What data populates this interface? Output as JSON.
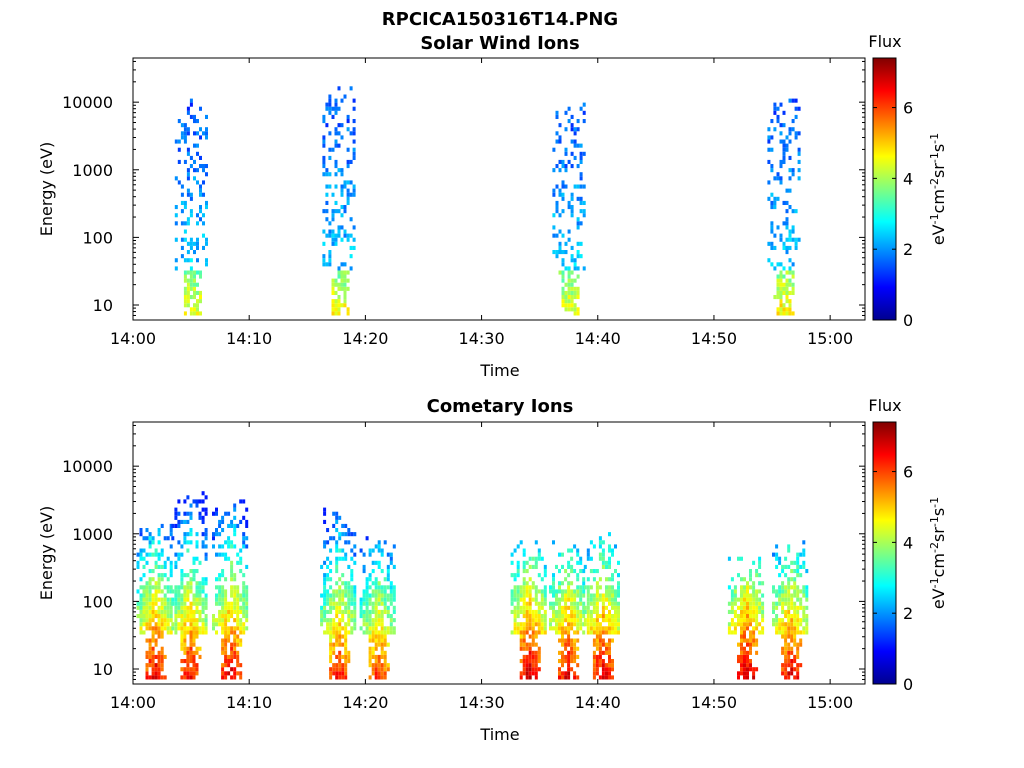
{
  "figure_title": "RPCICA150316T14.PNG",
  "colorbar_label": "Flux",
  "colorbar_units": {
    "base": "eV",
    "parts": [
      {
        "t": "eV",
        "s": "-1"
      },
      {
        "t": "cm",
        "s": "-2"
      },
      {
        "t": "sr",
        "s": "-1"
      },
      {
        "t": "s",
        "s": "-1"
      }
    ]
  },
  "colorbar_ticks": [
    "0",
    "2",
    "4",
    "6"
  ],
  "colorbar_range": [
    0,
    7.4
  ],
  "colormap": "jet",
  "chart_data": [
    {
      "type": "heatmap",
      "title": "Solar Wind Ions",
      "xlabel": "Time",
      "ylabel": "Energy (eV)",
      "xticks": [
        "14:00",
        "14:10",
        "14:20",
        "14:30",
        "14:40",
        "14:50",
        "15:00"
      ],
      "xlim_minutes": [
        0,
        63
      ],
      "yticks": [
        "10",
        "100",
        "1000",
        "10000"
      ],
      "ylim": [
        6,
        45000
      ],
      "yscale": "log",
      "bursts": [
        {
          "center_min": 5.0,
          "low_flux": 4.6,
          "high_energy": 8000
        },
        {
          "center_min": 17.7,
          "low_flux": 4.7,
          "high_energy": 12000
        },
        {
          "center_min": 37.5,
          "low_flux": 4.6,
          "high_energy": 9000
        },
        {
          "center_min": 56.0,
          "low_flux": 4.8,
          "high_energy": 9000
        }
      ]
    },
    {
      "type": "heatmap",
      "title": "Cometary Ions",
      "xlabel": "Time",
      "ylabel": "Energy (eV)",
      "xticks": [
        "14:00",
        "14:10",
        "14:20",
        "14:30",
        "14:40",
        "14:50",
        "15:00"
      ],
      "xlim_minutes": [
        0,
        63
      ],
      "yticks": [
        "10",
        "100",
        "1000",
        "10000"
      ],
      "ylim": [
        6,
        45000
      ],
      "yscale": "log",
      "bursts": [
        {
          "center_min": 1.8,
          "low_flux": 6.8,
          "high_energy": 1000
        },
        {
          "center_min": 4.8,
          "low_flux": 6.7,
          "high_energy": 3300
        },
        {
          "center_min": 8.3,
          "low_flux": 6.8,
          "high_energy": 2300
        },
        {
          "center_min": 17.6,
          "low_flux": 6.5,
          "high_energy": 1700
        },
        {
          "center_min": 21.0,
          "low_flux": 6.3,
          "high_energy": 600
        },
        {
          "center_min": 34.0,
          "low_flux": 7.0,
          "high_energy": 600
        },
        {
          "center_min": 37.3,
          "low_flux": 6.8,
          "high_energy": 600
        },
        {
          "center_min": 40.3,
          "low_flux": 6.9,
          "high_energy": 700
        },
        {
          "center_min": 52.7,
          "low_flux": 7.0,
          "high_energy": 400
        },
        {
          "center_min": 56.5,
          "low_flux": 6.8,
          "high_energy": 700
        }
      ]
    }
  ]
}
